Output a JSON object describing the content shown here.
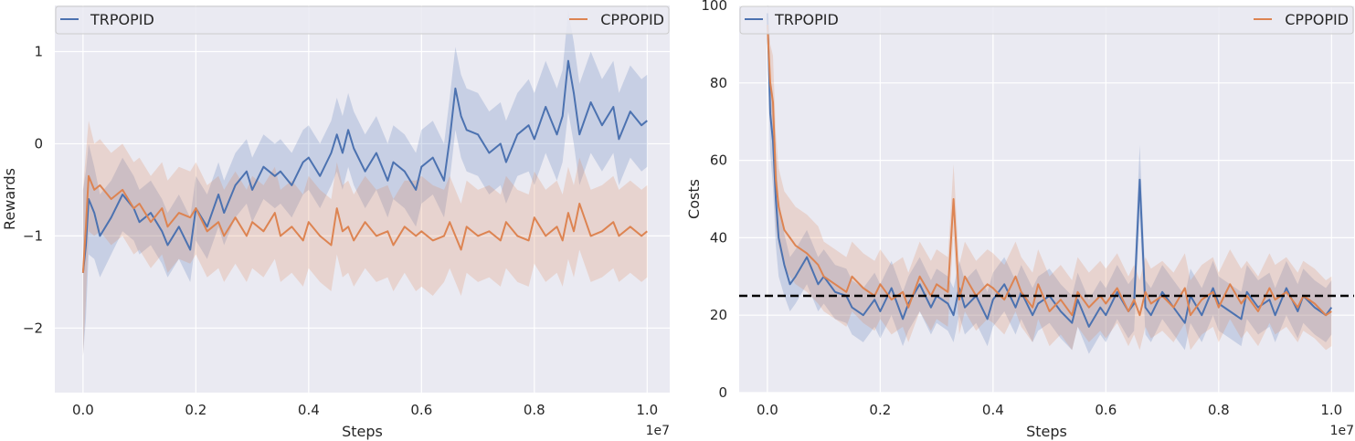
{
  "chart_data": [
    {
      "type": "line",
      "xlabel": "Steps",
      "ylabel": "Rewards",
      "x_offset_label": "1e7",
      "xlim": [
        -0.05,
        1.04
      ],
      "ylim": [
        -2.7,
        1.5
      ],
      "x_ticks": [
        0.0,
        0.2,
        0.4,
        0.6,
        0.8,
        1.0
      ],
      "x_tick_labels": [
        "0.0",
        "0.2",
        "0.4",
        "0.6",
        "0.8",
        "1.0"
      ],
      "y_ticks": [
        -2,
        -1,
        0,
        1
      ],
      "y_tick_labels": [
        "−2",
        "−1",
        "0",
        "1"
      ],
      "grid": true,
      "legend_position": "top",
      "x": [
        0.0,
        0.005,
        0.01,
        0.02,
        0.03,
        0.05,
        0.07,
        0.09,
        0.1,
        0.12,
        0.14,
        0.15,
        0.17,
        0.19,
        0.2,
        0.22,
        0.24,
        0.25,
        0.27,
        0.29,
        0.3,
        0.32,
        0.34,
        0.35,
        0.37,
        0.39,
        0.4,
        0.42,
        0.44,
        0.45,
        0.46,
        0.47,
        0.48,
        0.5,
        0.52,
        0.54,
        0.55,
        0.57,
        0.59,
        0.6,
        0.62,
        0.64,
        0.65,
        0.66,
        0.67,
        0.68,
        0.7,
        0.72,
        0.74,
        0.75,
        0.77,
        0.79,
        0.8,
        0.82,
        0.84,
        0.85,
        0.86,
        0.87,
        0.88,
        0.9,
        0.92,
        0.94,
        0.95,
        0.97,
        0.99,
        1.0
      ],
      "series": [
        {
          "name": "TRPOPID",
          "color": "#4c72b0",
          "values": [
            -1.4,
            -1.1,
            -0.6,
            -0.75,
            -1.0,
            -0.8,
            -0.55,
            -0.7,
            -0.85,
            -0.75,
            -0.95,
            -1.1,
            -0.9,
            -1.15,
            -0.7,
            -0.9,
            -0.55,
            -0.75,
            -0.45,
            -0.3,
            -0.5,
            -0.25,
            -0.35,
            -0.3,
            -0.45,
            -0.2,
            -0.15,
            -0.35,
            -0.1,
            0.1,
            -0.1,
            0.15,
            -0.05,
            -0.3,
            -0.1,
            -0.4,
            -0.2,
            -0.3,
            -0.5,
            -0.25,
            -0.15,
            -0.4,
            0.05,
            0.6,
            0.3,
            0.15,
            0.1,
            -0.1,
            0.0,
            -0.2,
            0.1,
            0.2,
            0.05,
            0.4,
            0.1,
            0.3,
            0.9,
            0.55,
            0.1,
            0.45,
            0.2,
            0.4,
            0.05,
            0.35,
            0.2,
            0.25
          ],
          "band_width": [
            0.9,
            0.8,
            0.6,
            0.5,
            0.45,
            0.4,
            0.4,
            0.35,
            0.35,
            0.35,
            0.35,
            0.35,
            0.35,
            0.35,
            0.35,
            0.35,
            0.35,
            0.35,
            0.35,
            0.35,
            0.35,
            0.35,
            0.35,
            0.35,
            0.35,
            0.35,
            0.35,
            0.35,
            0.35,
            0.4,
            0.4,
            0.4,
            0.4,
            0.4,
            0.4,
            0.4,
            0.4,
            0.4,
            0.4,
            0.4,
            0.4,
            0.4,
            0.45,
            0.45,
            0.45,
            0.45,
            0.45,
            0.45,
            0.45,
            0.45,
            0.45,
            0.5,
            0.5,
            0.5,
            0.5,
            0.5,
            0.55,
            0.55,
            0.55,
            0.55,
            0.5,
            0.5,
            0.5,
            0.5,
            0.5,
            0.5
          ]
        },
        {
          "name": "CPPOPID",
          "color": "#dd8452",
          "values": [
            -1.4,
            -0.9,
            -0.35,
            -0.5,
            -0.45,
            -0.6,
            -0.5,
            -0.7,
            -0.65,
            -0.85,
            -0.7,
            -0.9,
            -0.75,
            -0.8,
            -0.7,
            -0.95,
            -0.85,
            -1.0,
            -0.8,
            -1.0,
            -0.85,
            -0.95,
            -0.75,
            -1.0,
            -0.9,
            -1.05,
            -0.85,
            -1.0,
            -1.1,
            -0.7,
            -0.95,
            -0.9,
            -1.05,
            -0.85,
            -1.0,
            -0.95,
            -1.1,
            -0.9,
            -1.0,
            -0.95,
            -1.05,
            -1.0,
            -0.85,
            -1.0,
            -1.15,
            -0.9,
            -1.0,
            -0.95,
            -1.05,
            -0.85,
            -1.0,
            -1.05,
            -0.8,
            -1.0,
            -0.9,
            -1.05,
            -0.75,
            -0.95,
            -0.65,
            -1.0,
            -0.95,
            -0.85,
            -1.0,
            -0.9,
            -1.0,
            -0.95
          ],
          "band_width": [
            0.9,
            0.8,
            0.6,
            0.5,
            0.5,
            0.5,
            0.5,
            0.5,
            0.5,
            0.5,
            0.5,
            0.5,
            0.5,
            0.5,
            0.5,
            0.5,
            0.5,
            0.5,
            0.5,
            0.5,
            0.5,
            0.5,
            0.5,
            0.5,
            0.5,
            0.5,
            0.5,
            0.5,
            0.5,
            0.5,
            0.5,
            0.5,
            0.5,
            0.5,
            0.5,
            0.5,
            0.5,
            0.5,
            0.6,
            0.6,
            0.6,
            0.5,
            0.5,
            0.5,
            0.5,
            0.5,
            0.5,
            0.5,
            0.5,
            0.5,
            0.5,
            0.5,
            0.5,
            0.5,
            0.5,
            0.5,
            0.5,
            0.5,
            0.5,
            0.5,
            0.5,
            0.5,
            0.5,
            0.5,
            0.5,
            0.5
          ]
        }
      ]
    },
    {
      "type": "line",
      "xlabel": "Steps",
      "ylabel": "Costs",
      "x_offset_label": "1e7",
      "xlim": [
        -0.05,
        1.04
      ],
      "ylim": [
        0,
        100
      ],
      "x_ticks": [
        0.0,
        0.2,
        0.4,
        0.6,
        0.8,
        1.0
      ],
      "x_tick_labels": [
        "0.0",
        "0.2",
        "0.4",
        "0.6",
        "0.8",
        "1.0"
      ],
      "y_ticks": [
        0,
        20,
        40,
        60,
        80,
        100
      ],
      "y_tick_labels": [
        "0",
        "20",
        "40",
        "60",
        "80",
        "100"
      ],
      "grid": true,
      "legend_position": "top",
      "threshold": {
        "value": 25,
        "style": "dashed",
        "color": "#000000"
      },
      "x": [
        0.0,
        0.005,
        0.01,
        0.015,
        0.02,
        0.03,
        0.04,
        0.05,
        0.07,
        0.09,
        0.1,
        0.12,
        0.14,
        0.15,
        0.17,
        0.19,
        0.2,
        0.22,
        0.24,
        0.25,
        0.27,
        0.29,
        0.3,
        0.32,
        0.33,
        0.34,
        0.35,
        0.37,
        0.39,
        0.4,
        0.42,
        0.44,
        0.45,
        0.47,
        0.48,
        0.5,
        0.52,
        0.54,
        0.55,
        0.57,
        0.59,
        0.6,
        0.62,
        0.64,
        0.65,
        0.66,
        0.67,
        0.68,
        0.7,
        0.72,
        0.74,
        0.75,
        0.77,
        0.79,
        0.8,
        0.82,
        0.84,
        0.85,
        0.87,
        0.89,
        0.9,
        0.92,
        0.94,
        0.95,
        0.97,
        0.99,
        1.0
      ],
      "series": [
        {
          "name": "TRPOPID",
          "color": "#4c72b0",
          "values": [
            98,
            72,
            65,
            50,
            40,
            33,
            28,
            30,
            35,
            28,
            30,
            26,
            25,
            22,
            20,
            24,
            21,
            27,
            19,
            23,
            28,
            22,
            25,
            23,
            20,
            27,
            22,
            25,
            19,
            24,
            28,
            22,
            26,
            20,
            23,
            25,
            21,
            18,
            24,
            17,
            22,
            20,
            26,
            21,
            23,
            55,
            22,
            20,
            26,
            22,
            18,
            25,
            20,
            27,
            23,
            21,
            19,
            26,
            22,
            24,
            20,
            27,
            21,
            25,
            22,
            20,
            22
          ],
          "band_width": [
            6,
            10,
            12,
            12,
            10,
            8,
            7,
            7,
            7,
            7,
            7,
            7,
            7,
            7,
            7,
            7,
            7,
            7,
            7,
            7,
            7,
            7,
            7,
            7,
            7,
            7,
            7,
            7,
            7,
            7,
            7,
            7,
            7,
            7,
            7,
            7,
            7,
            7,
            7,
            7,
            7,
            7,
            7,
            7,
            7,
            9,
            7,
            7,
            7,
            7,
            7,
            7,
            7,
            7,
            7,
            7,
            7,
            7,
            7,
            7,
            7,
            7,
            7,
            7,
            7,
            7,
            7
          ]
        },
        {
          "name": "CPPOPID",
          "color": "#dd8452",
          "values": [
            95,
            80,
            75,
            55,
            48,
            42,
            40,
            38,
            36,
            33,
            30,
            28,
            26,
            30,
            27,
            25,
            28,
            24,
            26,
            22,
            30,
            25,
            28,
            26,
            50,
            24,
            30,
            25,
            28,
            27,
            24,
            30,
            26,
            22,
            28,
            21,
            24,
            20,
            26,
            22,
            25,
            23,
            27,
            21,
            24,
            20,
            26,
            23,
            25,
            22,
            27,
            20,
            24,
            26,
            22,
            28,
            23,
            25,
            21,
            27,
            24,
            26,
            22,
            25,
            23,
            20,
            21
          ],
          "band_width": [
            6,
            10,
            12,
            12,
            10,
            10,
            10,
            10,
            10,
            10,
            9,
            9,
            9,
            9,
            9,
            9,
            9,
            9,
            9,
            9,
            9,
            9,
            9,
            9,
            9,
            9,
            9,
            9,
            9,
            9,
            9,
            9,
            9,
            9,
            9,
            9,
            9,
            9,
            9,
            9,
            9,
            9,
            9,
            9,
            9,
            9,
            9,
            9,
            9,
            9,
            9,
            9,
            9,
            9,
            9,
            9,
            9,
            9,
            9,
            9,
            9,
            9,
            9,
            9,
            9,
            9,
            9
          ]
        }
      ]
    }
  ]
}
